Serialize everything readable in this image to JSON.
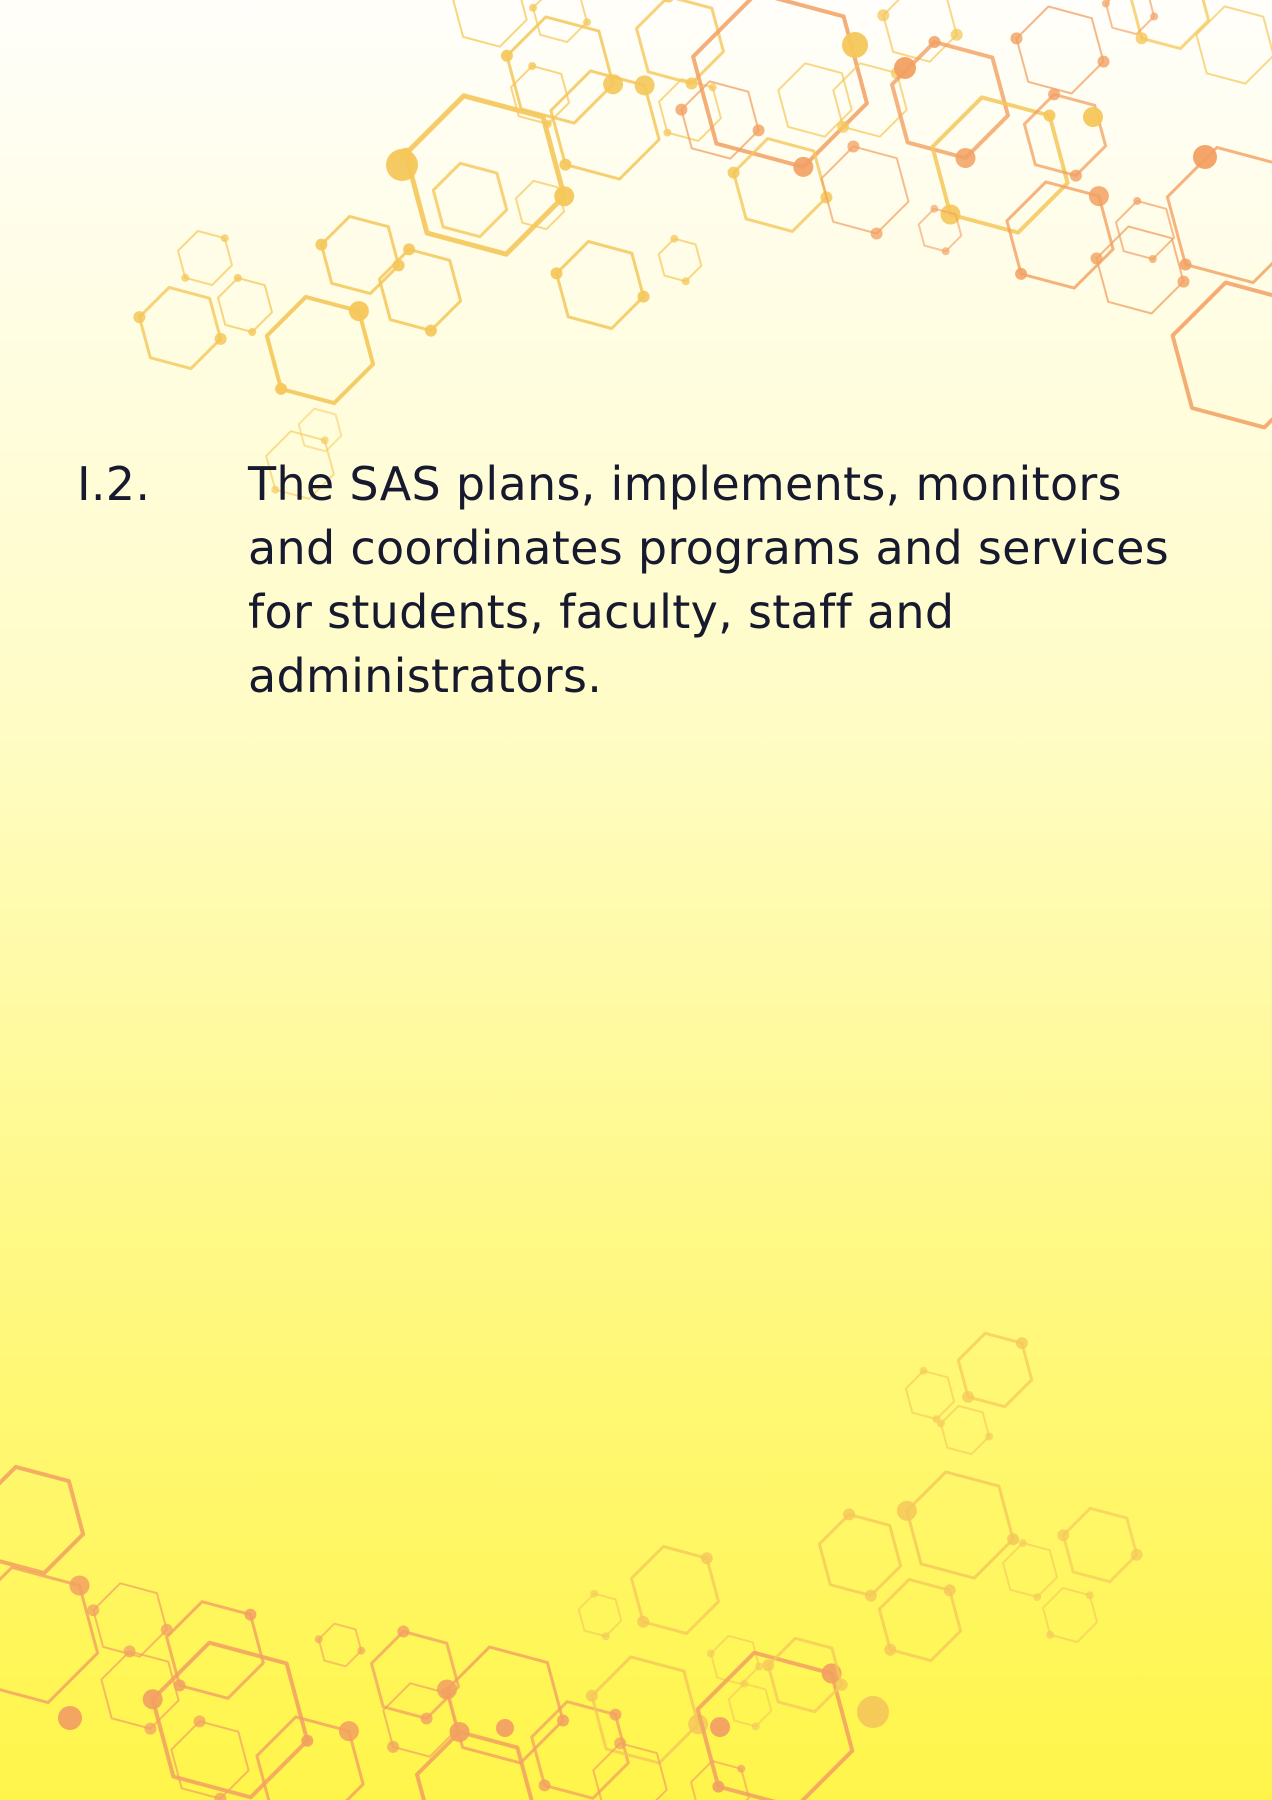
{
  "section": {
    "number": "I.2.",
    "text": "The SAS plans, implements, monitors\nand coordinates programs and services\nfor students, faculty, staff and\nadministrators."
  },
  "colors": {
    "background_top": "#fffefa",
    "background_bottom": "#fff54a",
    "text": "#171a2e",
    "hex_yellow": "#f5c75a",
    "hex_orange": "#f2a062"
  }
}
